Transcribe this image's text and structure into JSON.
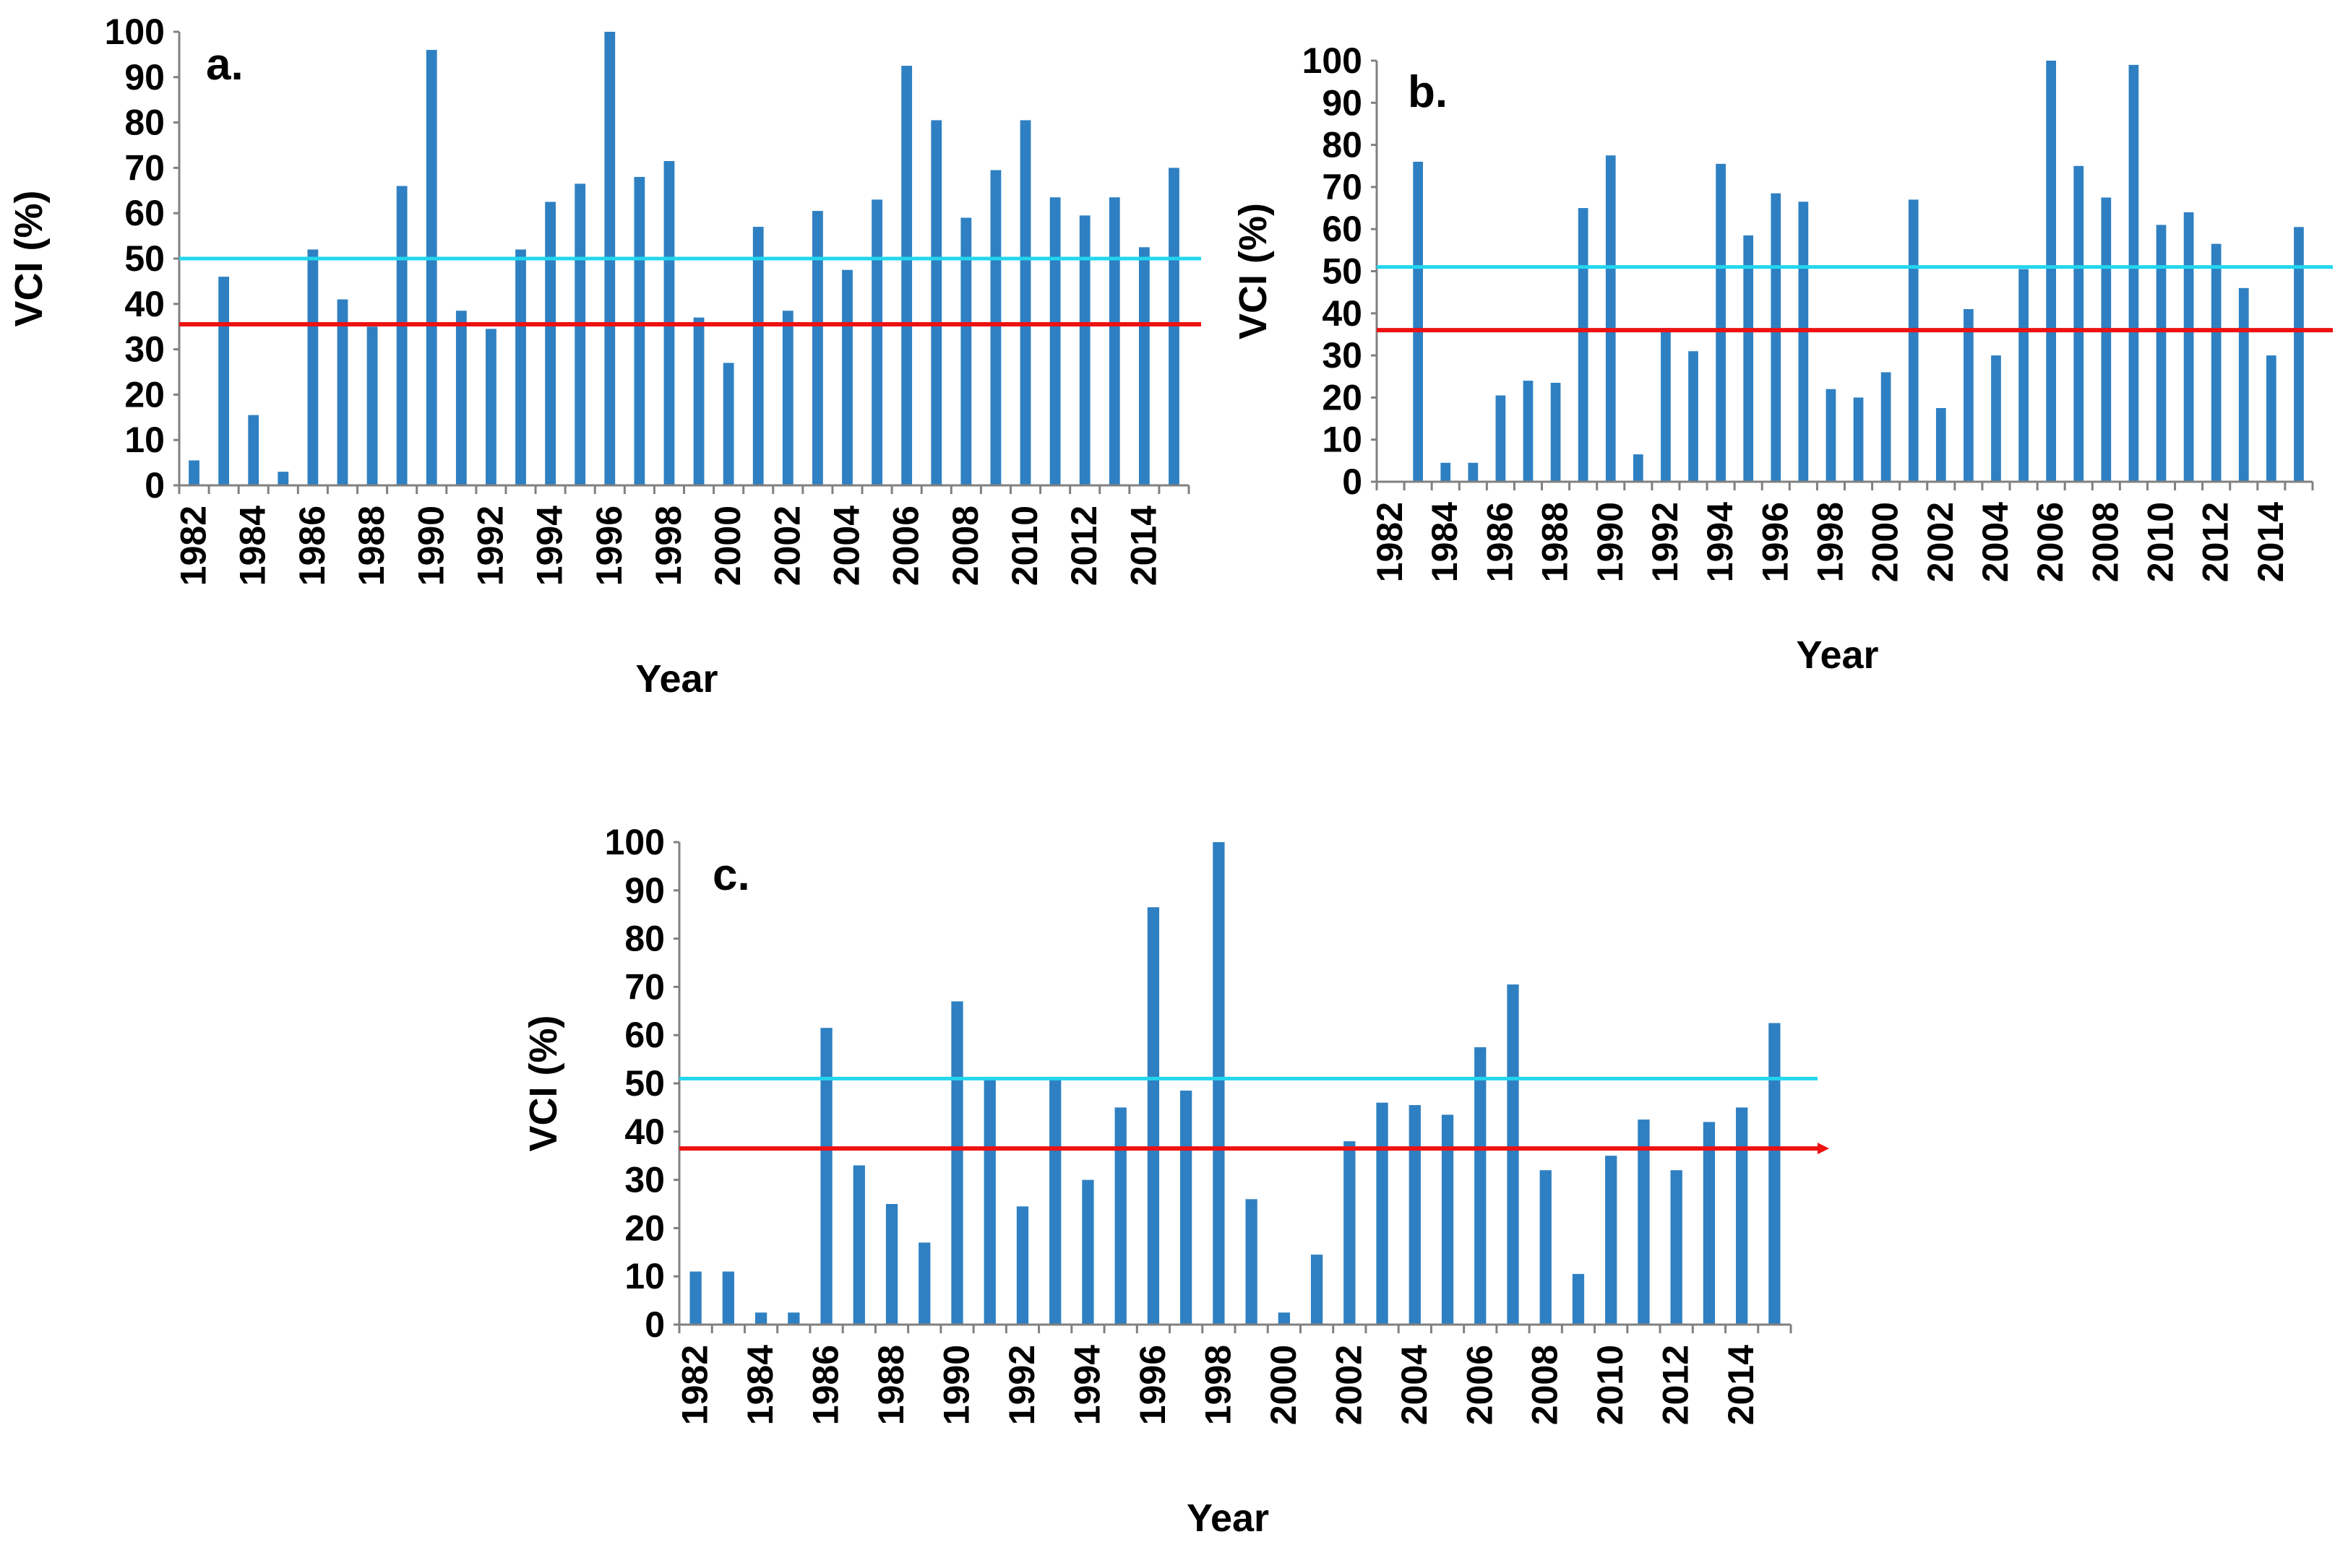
{
  "colors": {
    "bar": "#2e80c2",
    "upper_threshold_line": "#22d6ee",
    "lower_threshold_line": "#ee1111",
    "axis": "#808080",
    "text": "#000000",
    "background": "#ffffff"
  },
  "chart_data": [
    {
      "type": "bar",
      "panel_label": "a.",
      "ylabel": "VCI (%)",
      "xlabel": "Year",
      "ylim": [
        0,
        100
      ],
      "y_ticks": [
        0,
        10,
        20,
        30,
        40,
        50,
        60,
        70,
        80,
        90,
        100
      ],
      "x_tick_labels": [
        "1982",
        "1984",
        "1986",
        "1988",
        "1990",
        "1992",
        "1994",
        "1996",
        "1998",
        "2000",
        "2002",
        "2004",
        "2006",
        "2008",
        "2010",
        "2012",
        "2014"
      ],
      "categories": [
        1982,
        1983,
        1984,
        1985,
        1986,
        1987,
        1988,
        1989,
        1990,
        1991,
        1992,
        1993,
        1994,
        1995,
        1996,
        1997,
        1998,
        1999,
        2000,
        2001,
        2002,
        2003,
        2004,
        2005,
        2006,
        2007,
        2008,
        2009,
        2010,
        2011,
        2012,
        2013,
        2014,
        2015
      ],
      "values": [
        5.5,
        46,
        15.5,
        3,
        52,
        41,
        35,
        66,
        96,
        38.5,
        34.5,
        52,
        62.5,
        66.5,
        100,
        68,
        71.5,
        37,
        27,
        57,
        38.5,
        60.5,
        47.5,
        63,
        92.5,
        80.5,
        59,
        69.5,
        80.5,
        63.5,
        59.5,
        63.5,
        52.5,
        70
      ],
      "threshold_upper": 50,
      "threshold_lower": 35.5
    },
    {
      "type": "bar",
      "panel_label": "b.",
      "ylabel": "VCI (%)",
      "xlabel": "Year",
      "ylim": [
        0,
        100
      ],
      "y_ticks": [
        0,
        10,
        20,
        30,
        40,
        50,
        60,
        70,
        80,
        90,
        100
      ],
      "x_tick_labels": [
        "1982",
        "1984",
        "1986",
        "1988",
        "1990",
        "1992",
        "1994",
        "1996",
        "1998",
        "2000",
        "2002",
        "2004",
        "2006",
        "2008",
        "2010",
        "2012",
        "2014"
      ],
      "categories": [
        1982,
        1983,
        1984,
        1985,
        1986,
        1987,
        1988,
        1989,
        1990,
        1991,
        1992,
        1993,
        1994,
        1995,
        1996,
        1997,
        1998,
        1999,
        2000,
        2001,
        2002,
        2003,
        2004,
        2005,
        2006,
        2007,
        2008,
        2009,
        2010,
        2011,
        2012,
        2013,
        2014,
        2015
      ],
      "values": [
        0,
        76,
        4.5,
        4.5,
        20.5,
        24,
        23.5,
        65,
        77.5,
        6.5,
        36.5,
        31,
        75.5,
        58.5,
        68.5,
        66.5,
        22,
        20,
        26,
        67,
        17.5,
        41,
        30,
        50.5,
        100,
        75,
        67.5,
        99,
        61,
        64,
        56.5,
        46,
        30,
        60.5
      ],
      "threshold_upper": 51,
      "threshold_lower": 36
    },
    {
      "type": "bar",
      "panel_label": "c.",
      "ylabel": "VCI (%)",
      "xlabel": "Year",
      "ylim": [
        0,
        100
      ],
      "y_ticks": [
        0,
        10,
        20,
        30,
        40,
        50,
        60,
        70,
        80,
        90,
        100
      ],
      "x_tick_labels": [
        "1982",
        "1984",
        "1986",
        "1988",
        "1990",
        "1992",
        "1994",
        "1996",
        "1998",
        "2000",
        "2002",
        "2004",
        "2006",
        "2008",
        "2010",
        "2012",
        "2014"
      ],
      "categories": [
        1982,
        1983,
        1984,
        1985,
        1986,
        1987,
        1988,
        1989,
        1990,
        1991,
        1992,
        1993,
        1994,
        1995,
        1996,
        1997,
        1998,
        1999,
        2000,
        2001,
        2002,
        2003,
        2004,
        2005,
        2006,
        2007,
        2008,
        2009,
        2010,
        2011,
        2012,
        2013,
        2014,
        2015
      ],
      "values": [
        11,
        11,
        2.5,
        2.5,
        61.5,
        33,
        25,
        17,
        67,
        51,
        24.5,
        51,
        30,
        45,
        86.5,
        48.5,
        100,
        26,
        2.5,
        14.5,
        38,
        46,
        45.5,
        43.5,
        57.5,
        70.5,
        32,
        10.5,
        35,
        42.5,
        32,
        42,
        45,
        62.5
      ],
      "threshold_upper": 51,
      "threshold_lower": 36.5
    }
  ]
}
